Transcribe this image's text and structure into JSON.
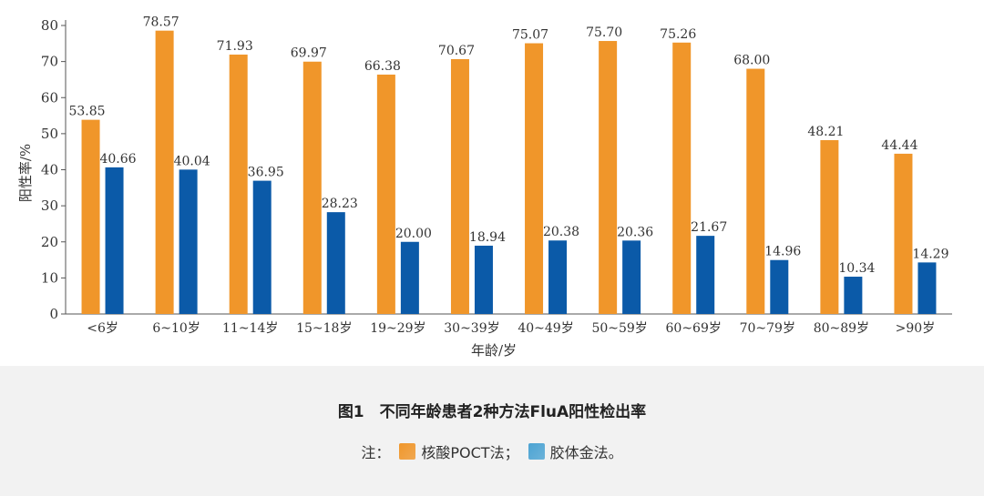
{
  "chart_data": {
    "type": "bar",
    "categories": [
      "<6岁",
      "6~10岁",
      "11~14岁",
      "15~18岁",
      "19~29岁",
      "30~39岁",
      "40~49岁",
      "50~59岁",
      "60~69岁",
      "70~79岁",
      "80~89岁",
      ">90岁"
    ],
    "series": [
      {
        "name": "核酸POCT法",
        "color": "#F0962A",
        "values": [
          53.85,
          78.57,
          71.93,
          69.97,
          66.38,
          70.67,
          75.07,
          75.7,
          75.26,
          68.0,
          48.21,
          44.44
        ],
        "labels": [
          "53.85",
          "78.57",
          "71.93",
          "69.97",
          "66.38",
          "70.67",
          "75.07",
          "75.70",
          "75.26",
          "68.00",
          "48.21",
          "44.44"
        ]
      },
      {
        "name": "胶体金法",
        "color": "#0B5AA8",
        "values": [
          40.66,
          40.04,
          36.95,
          28.23,
          20.0,
          18.94,
          20.38,
          20.36,
          21.67,
          14.96,
          10.34,
          14.29
        ],
        "labels": [
          "40.66",
          "40.04",
          "36.95",
          "28.23",
          "20.00",
          "18.94",
          "20.38",
          "20.36",
          "21.67",
          "14.96",
          "10.34",
          "14.29"
        ]
      }
    ],
    "ylim": [
      0,
      80
    ],
    "yticks": [
      "0",
      "10",
      "20",
      "30",
      "40",
      "50",
      "60",
      "70",
      "80"
    ],
    "xlabel": "年龄/岁",
    "ylabel": "阳性率/%",
    "grid": false,
    "legend": "bottom"
  },
  "caption": {
    "title": "图1　不同年龄患者2种方法FluA阳性检出率",
    "note_prefix": "注：",
    "legend_items": [
      {
        "label": "核酸POCT法；",
        "color": "#F0962A"
      },
      {
        "label": "胶体金法。",
        "color": "#4BA3D3"
      }
    ]
  }
}
